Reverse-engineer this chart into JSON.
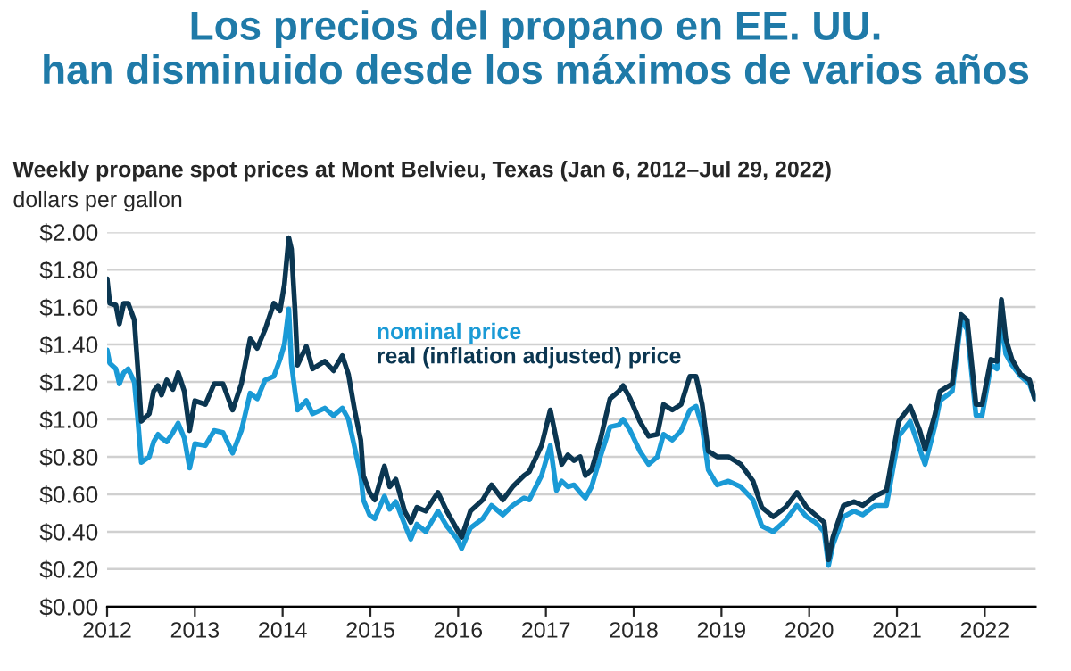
{
  "chart_data": {
    "type": "line",
    "title": "Los precios del propano en EE. UU.\nhan disminuido desde los máximos de varios años",
    "subtitle": "Weekly propane spot prices at Mont Belvieu, Texas (Jan 6, 2012–Jul 29, 2022)",
    "ylabel": "dollars per gallon",
    "xlim": [
      2012,
      2022.58
    ],
    "xticks": [
      2012,
      2013,
      2014,
      2015,
      2016,
      2017,
      2018,
      2019,
      2020,
      2021,
      2022
    ],
    "ylim": [
      0,
      2
    ],
    "yticks": [
      {
        "value": 0,
        "label": "$0.00"
      },
      {
        "value": 0.2,
        "label": "$0.20"
      },
      {
        "value": 0.4,
        "label": "$0.40"
      },
      {
        "value": 0.6,
        "label": "$0.60"
      },
      {
        "value": 0.8,
        "label": "$0.80"
      },
      {
        "value": 1.0,
        "label": "$1.00"
      },
      {
        "value": 1.2,
        "label": "$1.20"
      },
      {
        "value": 1.4,
        "label": "$1.40"
      },
      {
        "value": 1.6,
        "label": "$1.60"
      },
      {
        "value": 1.8,
        "label": "$1.80"
      },
      {
        "value": 2.0,
        "label": "$2.00"
      }
    ],
    "grid": "y",
    "legend": false,
    "x": [
      2012.0,
      2012.03,
      2012.1,
      2012.14,
      2012.19,
      2012.24,
      2012.31,
      2012.35,
      2012.39,
      2012.48,
      2012.53,
      2012.58,
      2012.62,
      2012.68,
      2012.75,
      2012.81,
      2012.88,
      2012.94,
      2013.0,
      2013.12,
      2013.22,
      2013.32,
      2013.43,
      2013.53,
      2013.63,
      2013.71,
      2013.8,
      2013.9,
      2013.97,
      2014.02,
      2014.07,
      2014.1,
      2014.14,
      2014.17,
      2014.27,
      2014.34,
      2014.48,
      2014.58,
      2014.68,
      2014.75,
      2014.82,
      2014.89,
      2014.92,
      2014.99,
      2015.05,
      2015.16,
      2015.22,
      2015.29,
      2015.39,
      2015.46,
      2015.53,
      2015.63,
      2015.77,
      2015.87,
      2015.99,
      2016.04,
      2016.14,
      2016.28,
      2016.38,
      2016.51,
      2016.62,
      2016.75,
      2016.81,
      2016.95,
      2017.05,
      2017.12,
      2017.18,
      2017.25,
      2017.32,
      2017.39,
      2017.45,
      2017.52,
      2017.62,
      2017.73,
      2017.83,
      2017.88,
      2017.96,
      2018.07,
      2018.17,
      2018.27,
      2018.34,
      2018.44,
      2018.54,
      2018.64,
      2018.71,
      2018.78,
      2018.85,
      2018.95,
      2019.08,
      2019.22,
      2019.36,
      2019.46,
      2019.59,
      2019.73,
      2019.86,
      2019.97,
      2020.07,
      2020.17,
      2020.22,
      2020.27,
      2020.39,
      2020.51,
      2020.61,
      2020.75,
      2020.88,
      2021.02,
      2021.15,
      2021.26,
      2021.32,
      2021.43,
      2021.49,
      2021.63,
      2021.73,
      2021.8,
      2021.9,
      2021.97,
      2022.07,
      2022.14,
      2022.19,
      2022.24,
      2022.31,
      2022.41,
      2022.51,
      2022.57
    ],
    "series": [
      {
        "name": "nominal price",
        "color": "#1a9ad6",
        "values": [
          1.37,
          1.3,
          1.27,
          1.19,
          1.25,
          1.27,
          1.2,
          1.0,
          0.77,
          0.8,
          0.88,
          0.92,
          0.9,
          0.88,
          0.93,
          0.98,
          0.9,
          0.74,
          0.87,
          0.86,
          0.94,
          0.93,
          0.82,
          0.94,
          1.14,
          1.11,
          1.21,
          1.23,
          1.32,
          1.4,
          1.59,
          1.3,
          1.15,
          1.05,
          1.1,
          1.03,
          1.06,
          1.02,
          1.06,
          1.0,
          0.85,
          0.7,
          0.57,
          0.49,
          0.47,
          0.59,
          0.52,
          0.56,
          0.44,
          0.36,
          0.44,
          0.4,
          0.51,
          0.43,
          0.36,
          0.31,
          0.42,
          0.47,
          0.54,
          0.49,
          0.54,
          0.58,
          0.57,
          0.7,
          0.86,
          0.62,
          0.67,
          0.64,
          0.65,
          0.61,
          0.58,
          0.64,
          0.8,
          0.96,
          0.97,
          1.0,
          0.94,
          0.83,
          0.76,
          0.8,
          0.92,
          0.89,
          0.94,
          1.05,
          1.07,
          0.96,
          0.73,
          0.65,
          0.67,
          0.64,
          0.57,
          0.43,
          0.4,
          0.46,
          0.54,
          0.48,
          0.45,
          0.4,
          0.22,
          0.33,
          0.48,
          0.51,
          0.49,
          0.54,
          0.54,
          0.91,
          0.99,
          0.84,
          0.76,
          0.96,
          1.1,
          1.15,
          1.53,
          1.48,
          1.02,
          1.02,
          1.29,
          1.27,
          1.54,
          1.35,
          1.29,
          1.23,
          1.19,
          1.11
        ]
      },
      {
        "name": "real (inflation adjusted) price",
        "color": "#0b3651",
        "values": [
          1.75,
          1.62,
          1.61,
          1.51,
          1.62,
          1.62,
          1.53,
          1.27,
          0.99,
          1.03,
          1.15,
          1.18,
          1.13,
          1.21,
          1.16,
          1.25,
          1.15,
          0.94,
          1.1,
          1.08,
          1.19,
          1.19,
          1.05,
          1.19,
          1.43,
          1.38,
          1.48,
          1.62,
          1.58,
          1.72,
          1.97,
          1.91,
          1.59,
          1.29,
          1.39,
          1.27,
          1.31,
          1.26,
          1.34,
          1.24,
          1.05,
          0.89,
          0.7,
          0.61,
          0.57,
          0.75,
          0.64,
          0.68,
          0.51,
          0.45,
          0.53,
          0.51,
          0.61,
          0.51,
          0.41,
          0.37,
          0.51,
          0.57,
          0.65,
          0.57,
          0.64,
          0.7,
          0.72,
          0.86,
          1.05,
          0.89,
          0.76,
          0.81,
          0.78,
          0.8,
          0.7,
          0.73,
          0.89,
          1.11,
          1.15,
          1.18,
          1.11,
          0.99,
          0.91,
          0.92,
          1.08,
          1.05,
          1.08,
          1.23,
          1.23,
          1.08,
          0.83,
          0.8,
          0.8,
          0.76,
          0.67,
          0.53,
          0.48,
          0.53,
          0.61,
          0.53,
          0.49,
          0.45,
          0.25,
          0.37,
          0.54,
          0.56,
          0.54,
          0.59,
          0.62,
          0.99,
          1.07,
          0.94,
          0.84,
          1.02,
          1.15,
          1.19,
          1.56,
          1.53,
          1.08,
          1.08,
          1.32,
          1.31,
          1.64,
          1.43,
          1.32,
          1.24,
          1.21,
          1.11
        ]
      }
    ]
  }
}
